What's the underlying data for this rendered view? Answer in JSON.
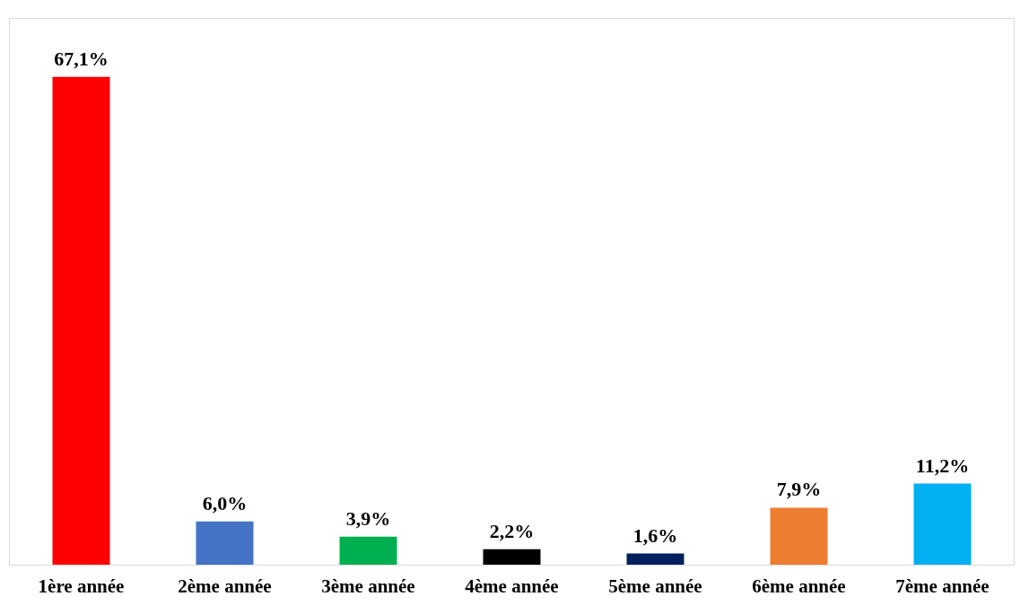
{
  "chart_data": {
    "type": "bar",
    "categories": [
      "1ère année",
      "2ème année",
      "3ème année",
      "4ème année",
      "5ème année",
      "6ème année",
      "7ème année"
    ],
    "values": [
      67.1,
      6.0,
      3.9,
      2.2,
      1.6,
      7.9,
      11.2
    ],
    "colors": [
      "#ff0000",
      "#4472c4",
      "#00b050",
      "#000000",
      "#002060",
      "#ed7d31",
      "#00b0f0"
    ],
    "value_labels": [
      "67,1%",
      "6,0%",
      "3,9%",
      "2,2%",
      "1,6%",
      "7,9%",
      "11,2%"
    ]
  }
}
